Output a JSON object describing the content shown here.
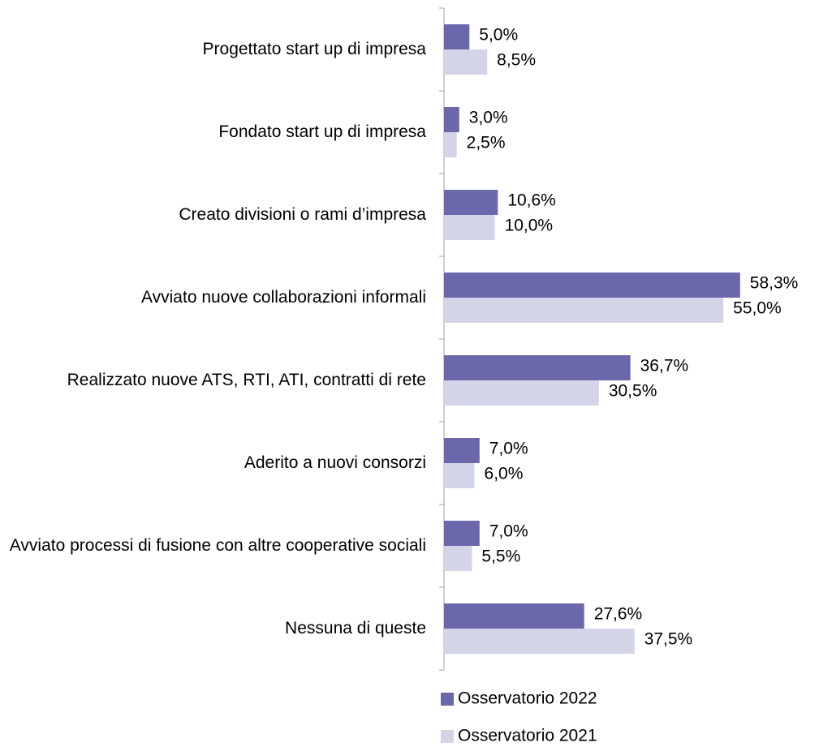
{
  "chart_data": {
    "type": "bar",
    "orientation": "horizontal",
    "categories": [
      "Progettato start up di impresa",
      "Fondato start up di impresa",
      "Creato divisioni o rami d’impresa",
      "Avviato nuove collaborazioni informali",
      "Realizzato nuove ATS, RTI, ATI, contratti di rete",
      "Aderito a nuovi consorzi",
      "Avviato processi di fusione con altre cooperative sociali",
      "Nessuna di queste"
    ],
    "series": [
      {
        "name": "Osservatorio 2022",
        "color": "#6b67ab",
        "values": [
          5.0,
          3.0,
          10.6,
          58.3,
          36.7,
          7.0,
          7.0,
          27.6
        ],
        "value_labels": [
          "5,0%",
          "3,0%",
          "10,6%",
          "58,3%",
          "36,7%",
          "7,0%",
          "7,0%",
          "27,6%"
        ]
      },
      {
        "name": "Osservatorio 2021",
        "color": "#d4d4e8",
        "values": [
          8.5,
          2.5,
          10.0,
          55.0,
          30.5,
          6.0,
          5.5,
          37.5
        ],
        "value_labels": [
          "8,5%",
          "2,5%",
          "10,0%",
          "55,0%",
          "30,5%",
          "6,0%",
          "5,5%",
          "37,5%"
        ]
      }
    ],
    "xlim": [
      0,
      70
    ],
    "legend": "bottom"
  }
}
